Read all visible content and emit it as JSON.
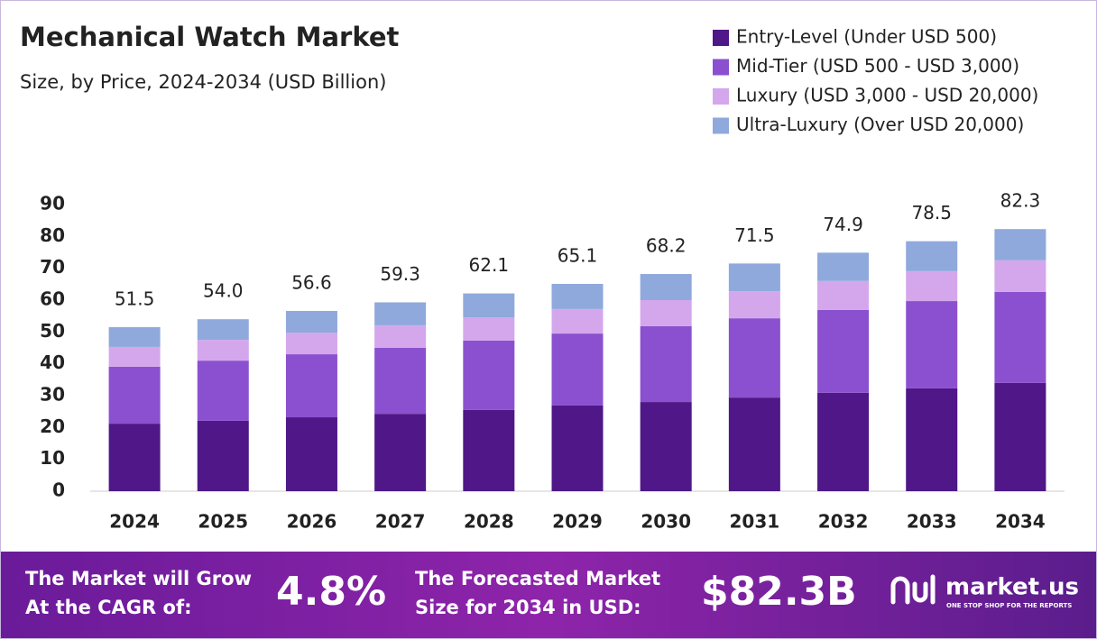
{
  "chart_data": {
    "type": "stacked-bar",
    "title": "Mechanical Watch Market",
    "subtitle": "Size, by Price, 2024-2034 (USD Billion)",
    "categories": [
      "2024",
      "2025",
      "2026",
      "2027",
      "2028",
      "2029",
      "2030",
      "2031",
      "2032",
      "2033",
      "2034"
    ],
    "series": [
      {
        "name": "Entry-Level (Under USD 500)",
        "color": "#4f1787",
        "values": [
          21.2,
          22.1,
          23.2,
          24.3,
          25.5,
          26.9,
          28.0,
          29.4,
          30.9,
          32.3,
          34.0
        ]
      },
      {
        "name": "Mid-Tier (USD 500 - USD 3,000)",
        "color": "#8b50cf",
        "values": [
          17.9,
          18.9,
          19.8,
          20.7,
          21.8,
          22.6,
          23.8,
          24.9,
          26.0,
          27.4,
          28.6
        ]
      },
      {
        "name": "Luxury (USD 3,000 - USD 20,000)",
        "color": "#d4a7ec",
        "values": [
          6.2,
          6.5,
          6.8,
          7.1,
          7.3,
          7.7,
          8.2,
          8.5,
          9.1,
          9.4,
          9.9
        ]
      },
      {
        "name": "Ultra-Luxury (Over USD 20,000)",
        "color": "#8fa9dc",
        "values": [
          6.2,
          6.5,
          6.8,
          7.2,
          7.5,
          7.9,
          8.2,
          8.7,
          8.9,
          9.4,
          9.8
        ]
      }
    ],
    "totals": [
      51.5,
      54.0,
      56.6,
      59.3,
      62.1,
      65.1,
      68.2,
      71.5,
      74.9,
      78.5,
      82.3
    ],
    "value_labels": [
      "51.5",
      "54.0",
      "56.6",
      "59.3",
      "62.1",
      "65.1",
      "68.2",
      "71.5",
      "74.9",
      "78.5",
      "82.3"
    ],
    "ylim": [
      0,
      90
    ],
    "yticks": [
      0,
      10,
      20,
      30,
      40,
      50,
      60,
      70,
      80,
      90
    ],
    "grid": false,
    "legend": "top-right"
  },
  "footer": {
    "cagr_label_1": "The Market will Grow",
    "cagr_label_2": "At the CAGR of:",
    "cagr_value": "4.8%",
    "forecast_label_1": "The Forecasted Market",
    "forecast_label_2": "Size for 2034 in USD:",
    "forecast_value": "$82.3B",
    "brand": "market.us",
    "brand_tagline": "ONE STOP SHOP FOR THE REPORTS"
  }
}
